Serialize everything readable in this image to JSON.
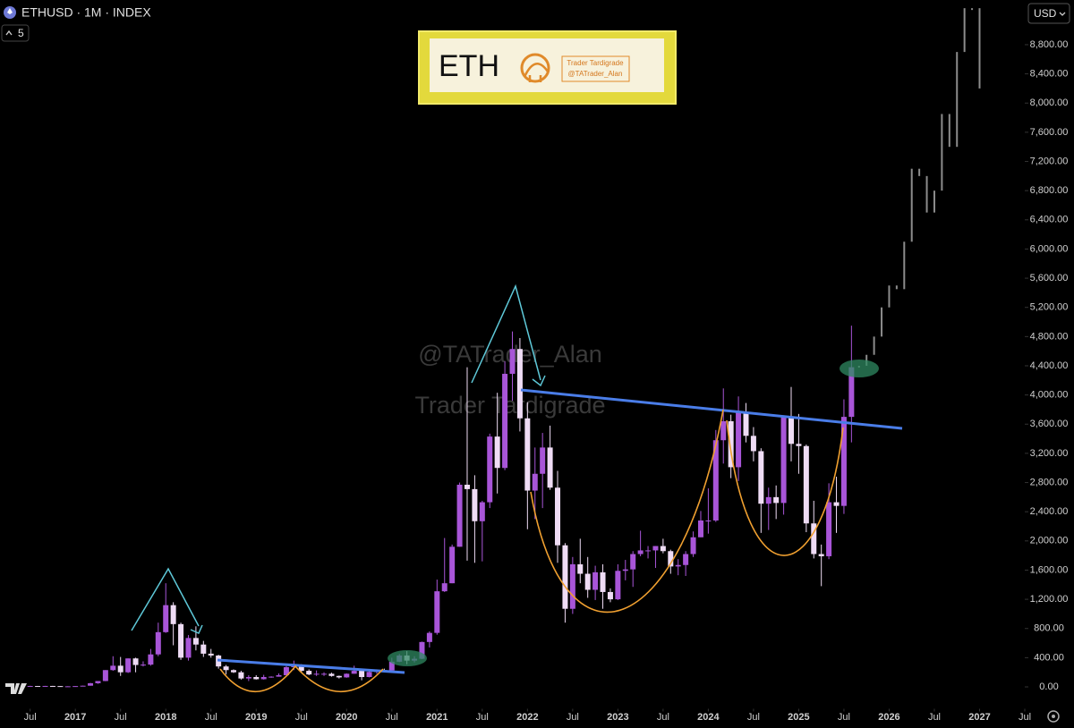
{
  "chart_data": {
    "type": "candlestick",
    "title": "ETHUSD · 1M · INDEX",
    "indicator_count": 5,
    "currency": "USD",
    "watermark": [
      "@TATrader_Alan",
      "Trader Tardigrade"
    ],
    "logo": {
      "symbol": "ETH",
      "name": "Trader Tardigrade",
      "handle": "@TATrader_Alan"
    },
    "xlim": [
      "2016-03",
      "2027-07"
    ],
    "ylim": [
      -300,
      9400
    ],
    "xticks": [
      {
        "value": "2016-07",
        "label": "Jul"
      },
      {
        "value": "2017-01",
        "label": "2017"
      },
      {
        "value": "2017-07",
        "label": "Jul"
      },
      {
        "value": "2018-01",
        "label": "2018"
      },
      {
        "value": "2018-07",
        "label": "Jul"
      },
      {
        "value": "2019-01",
        "label": "2019"
      },
      {
        "value": "2019-07",
        "label": "Jul"
      },
      {
        "value": "2020-01",
        "label": "2020"
      },
      {
        "value": "2020-07",
        "label": "Jul"
      },
      {
        "value": "2021-01",
        "label": "2021"
      },
      {
        "value": "2021-07",
        "label": "Jul"
      },
      {
        "value": "2022-01",
        "label": "2022"
      },
      {
        "value": "2022-07",
        "label": "Jul"
      },
      {
        "value": "2023-01",
        "label": "2023"
      },
      {
        "value": "2023-07",
        "label": "Jul"
      },
      {
        "value": "2024-01",
        "label": "2024"
      },
      {
        "value": "2024-07",
        "label": "Jul"
      },
      {
        "value": "2025-01",
        "label": "2025"
      },
      {
        "value": "2025-07",
        "label": "Jul"
      },
      {
        "value": "2026-01",
        "label": "2026"
      },
      {
        "value": "2026-07",
        "label": "Jul"
      },
      {
        "value": "2027-01",
        "label": "2027"
      },
      {
        "value": "2027-07",
        "label": "Jul"
      }
    ],
    "yticks": [
      {
        "value": 0,
        "label": "0.00"
      },
      {
        "value": 400,
        "label": "400.00"
      },
      {
        "value": 800,
        "label": "800.00"
      },
      {
        "value": 1200,
        "label": "1,200.00"
      },
      {
        "value": 1600,
        "label": "1,600.00"
      },
      {
        "value": 2000,
        "label": "2,000.00"
      },
      {
        "value": 2400,
        "label": "2,400.00"
      },
      {
        "value": 2800,
        "label": "2,800.00"
      },
      {
        "value": 3200,
        "label": "3,200.00"
      },
      {
        "value": 3600,
        "label": "3,600.00"
      },
      {
        "value": 4000,
        "label": "4,000.00"
      },
      {
        "value": 4400,
        "label": "4,400.00"
      },
      {
        "value": 4800,
        "label": "4,800.00"
      },
      {
        "value": 5200,
        "label": "5,200.00"
      },
      {
        "value": 5600,
        "label": "5,600.00"
      },
      {
        "value": 6000,
        "label": "6,000.00"
      },
      {
        "value": 6400,
        "label": "6,400.00"
      },
      {
        "value": 6800,
        "label": "6,800.00"
      },
      {
        "value": 7200,
        "label": "7,200.00"
      },
      {
        "value": 7600,
        "label": "7,600.00"
      },
      {
        "value": 8000,
        "label": "8,000.00"
      },
      {
        "value": 8400,
        "label": "8,400.00"
      },
      {
        "value": 8800,
        "label": "8,800.00"
      }
    ],
    "series": [
      {
        "up_color": "#a855d8",
        "down_color": "#efdcf5",
        "x": [
          "2016-07",
          "2016-08",
          "2016-09",
          "2016-10",
          "2016-11",
          "2016-12",
          "2017-01",
          "2017-02",
          "2017-03",
          "2017-04",
          "2017-05",
          "2017-06",
          "2017-07",
          "2017-08",
          "2017-09",
          "2017-10",
          "2017-11",
          "2017-12",
          "2018-01",
          "2018-02",
          "2018-03",
          "2018-04",
          "2018-05",
          "2018-06",
          "2018-07",
          "2018-08",
          "2018-09",
          "2018-10",
          "2018-11",
          "2018-12",
          "2019-01",
          "2019-02",
          "2019-03",
          "2019-04",
          "2019-05",
          "2019-06",
          "2019-07",
          "2019-08",
          "2019-09",
          "2019-10",
          "2019-11",
          "2019-12",
          "2020-01",
          "2020-02",
          "2020-03",
          "2020-04",
          "2020-05",
          "2020-06",
          "2020-07",
          "2020-08",
          "2020-09",
          "2020-10",
          "2020-11",
          "2020-12",
          "2021-01",
          "2021-02",
          "2021-03",
          "2021-04",
          "2021-05",
          "2021-06",
          "2021-07",
          "2021-08",
          "2021-09",
          "2021-10",
          "2021-11",
          "2021-12",
          "2022-01",
          "2022-02",
          "2022-03",
          "2022-04",
          "2022-05",
          "2022-06",
          "2022-07",
          "2022-08",
          "2022-09",
          "2022-10",
          "2022-11",
          "2022-12",
          "2023-01",
          "2023-02",
          "2023-03",
          "2023-04",
          "2023-05",
          "2023-06",
          "2023-07",
          "2023-08",
          "2023-09",
          "2023-10",
          "2023-11",
          "2023-12",
          "2024-01",
          "2024-02",
          "2024-03",
          "2024-04",
          "2024-05",
          "2024-06",
          "2024-07",
          "2024-08",
          "2024-09",
          "2024-10",
          "2024-11",
          "2024-12",
          "2025-01",
          "2025-02",
          "2025-03",
          "2025-04",
          "2025-05",
          "2025-06",
          "2025-07",
          "2025-08"
        ],
        "open": [
          12,
          12,
          11,
          13,
          11,
          8,
          8,
          11,
          16,
          50,
          80,
          230,
          290,
          200,
          390,
          300,
          305,
          445,
          750,
          1120,
          860,
          400,
          670,
          580,
          455,
          430,
          280,
          230,
          200,
          115,
          135,
          105,
          135,
          140,
          160,
          270,
          290,
          220,
          170,
          180,
          180,
          150,
          130,
          180,
          220,
          135,
          205,
          230,
          225,
          345,
          430,
          360,
          385,
          615,
          740,
          1310,
          1420,
          1920,
          2770,
          2710,
          2270,
          2530,
          3430,
          3000,
          4290,
          4630,
          3680,
          2690,
          2920,
          3280,
          2730,
          1940,
          1070,
          1680,
          1550,
          1330,
          1570,
          1300,
          1200,
          1590,
          1610,
          1820,
          1870,
          1870,
          1930,
          1860,
          1650,
          1670,
          1820,
          2050,
          2280,
          2280,
          3380,
          3640,
          3010,
          3760,
          3440,
          3230,
          2510,
          2600,
          2520,
          3700,
          3330,
          3300,
          2240,
          1820,
          1790,
          2530,
          2480,
          3700
        ],
        "high": [
          15,
          13,
          14,
          14,
          12,
          9,
          12,
          17,
          55,
          80,
          230,
          420,
          410,
          390,
          400,
          350,
          520,
          880,
          1420,
          1160,
          880,
          710,
          830,
          630,
          520,
          440,
          300,
          240,
          220,
          160,
          160,
          165,
          145,
          185,
          285,
          360,
          310,
          240,
          225,
          200,
          195,
          155,
          185,
          290,
          250,
          230,
          240,
          250,
          400,
          450,
          490,
          420,
          620,
          760,
          1470,
          2040,
          1950,
          2800,
          4380,
          2900,
          2550,
          3470,
          4030,
          4460,
          4870,
          4780,
          3900,
          3280,
          3480,
          3580,
          2960,
          1970,
          1780,
          2030,
          1780,
          1660,
          1680,
          1350,
          1680,
          1740,
          1860,
          2140,
          1930,
          1930,
          2030,
          1880,
          1750,
          1860,
          2130,
          2410,
          2720,
          3520,
          4090,
          3730,
          3980,
          3890,
          3560,
          3270,
          2730,
          2760,
          3720,
          4110,
          3740,
          3320,
          2550,
          1950,
          2790,
          2880,
          3940,
          4950
        ],
        "low": [
          10,
          10,
          11,
          10,
          8,
          6,
          8,
          10,
          16,
          42,
          78,
          220,
          150,
          190,
          200,
          280,
          290,
          420,
          740,
          570,
          370,
          360,
          500,
          410,
          400,
          250,
          170,
          190,
          100,
          80,
          100,
          100,
          125,
          140,
          160,
          230,
          190,
          160,
          150,
          150,
          140,
          115,
          125,
          180,
          90,
          130,
          180,
          215,
          225,
          340,
          310,
          335,
          380,
          540,
          715,
          1300,
          1420,
          1920,
          1730,
          1700,
          1720,
          2450,
          2650,
          2970,
          3920,
          3500,
          2160,
          2300,
          2450,
          2700,
          1700,
          880,
          1000,
          1420,
          1220,
          1190,
          1070,
          1160,
          1190,
          1460,
          1370,
          1790,
          1760,
          1630,
          1830,
          1550,
          1530,
          1520,
          1780,
          2050,
          2100,
          2260,
          3060,
          2860,
          2820,
          3350,
          3090,
          2110,
          2150,
          2300,
          2360,
          3090,
          2920,
          2120,
          1760,
          1380,
          1750,
          2110,
          2370,
          3350
        ],
        "close": [
          12,
          11,
          13,
          11,
          8,
          8,
          11,
          16,
          50,
          80,
          230,
          290,
          200,
          390,
          300,
          305,
          445,
          750,
          1120,
          860,
          400,
          670,
          580,
          455,
          430,
          280,
          230,
          200,
          115,
          135,
          105,
          135,
          140,
          160,
          270,
          290,
          220,
          170,
          180,
          180,
          150,
          130,
          180,
          220,
          135,
          205,
          230,
          225,
          345,
          430,
          360,
          385,
          615,
          740,
          1310,
          1420,
          1920,
          2770,
          2710,
          2270,
          2530,
          3430,
          3000,
          4290,
          4630,
          3680,
          2690,
          2920,
          3280,
          2730,
          1940,
          1070,
          1680,
          1550,
          1330,
          1570,
          1300,
          1200,
          1590,
          1610,
          1820,
          1870,
          1870,
          1930,
          1860,
          1650,
          1670,
          1820,
          2050,
          2280,
          2280,
          3380,
          3640,
          3010,
          3760,
          3440,
          3230,
          2510,
          2600,
          2520,
          3700,
          3330,
          3300,
          2240,
          1820,
          1790,
          2530,
          2480,
          3700,
          4380
        ]
      },
      {
        "color": "#8c8c8c",
        "x": [
          "2025-09",
          "2025-10",
          "2025-11",
          "2025-12",
          "2026-01",
          "2026-02",
          "2026-03",
          "2026-04",
          "2026-05",
          "2026-06",
          "2026-07",
          "2026-08",
          "2026-09",
          "2026-10",
          "2026-11",
          "2026-12",
          "2027-01"
        ],
        "values": [
          4400,
          4550,
          4800,
          5200,
          5500,
          5450,
          6100,
          7100,
          7000,
          6500,
          6800,
          7850,
          7400,
          8700,
          9300,
          9300,
          8200
        ]
      }
    ]
  }
}
